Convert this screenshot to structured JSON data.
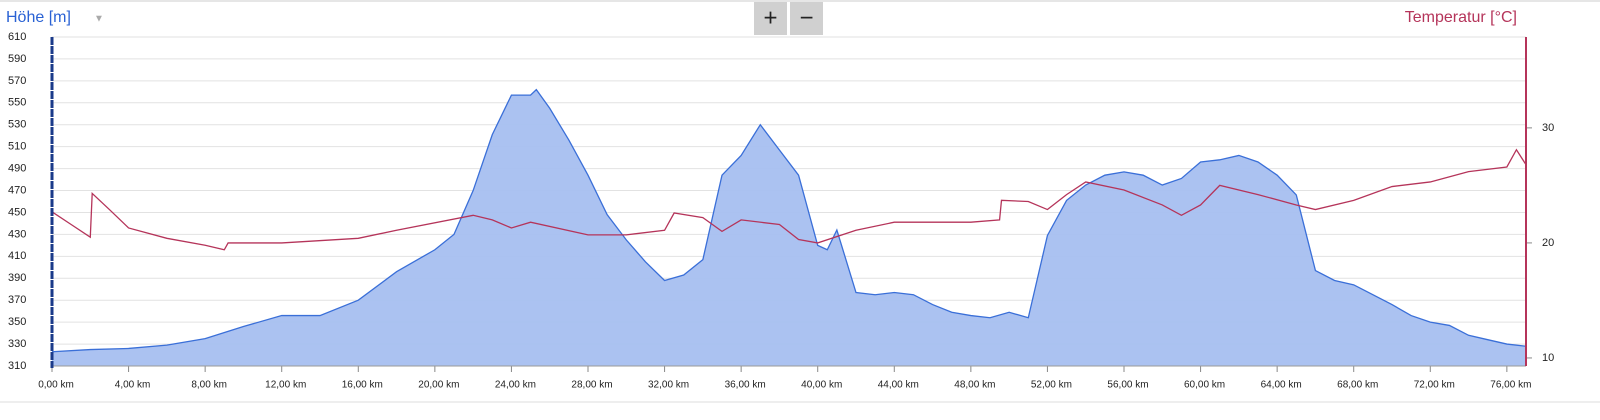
{
  "toolbar": {
    "zoom_in": "+",
    "zoom_out": "−"
  },
  "chart_data": {
    "type": "area-line",
    "y_label": "Höhe [m]",
    "y2_label": "Temperatur [°C]",
    "xlim": [
      0,
      77
    ],
    "ylim": [
      310,
      610
    ],
    "y2lim": [
      9.3,
      37.9
    ],
    "grid": true,
    "xticks": [
      {
        "value": 0,
        "label": "0,00 km"
      },
      {
        "value": 4,
        "label": "4,00 km"
      },
      {
        "value": 8,
        "label": "8,00 km"
      },
      {
        "value": 12,
        "label": "12,00 km"
      },
      {
        "value": 16,
        "label": "16,00 km"
      },
      {
        "value": 20,
        "label": "20,00 km"
      },
      {
        "value": 24,
        "label": "24,00 km"
      },
      {
        "value": 28,
        "label": "28,00 km"
      },
      {
        "value": 32,
        "label": "32,00 km"
      },
      {
        "value": 36,
        "label": "36,00 km"
      },
      {
        "value": 40,
        "label": "40,00 km"
      },
      {
        "value": 44,
        "label": "44,00 km"
      },
      {
        "value": 48,
        "label": "48,00 km"
      },
      {
        "value": 52,
        "label": "52,00 km"
      },
      {
        "value": 56,
        "label": "56,00 km"
      },
      {
        "value": 60,
        "label": "60,00 km"
      },
      {
        "value": 64,
        "label": "64,00 km"
      },
      {
        "value": 68,
        "label": "68,00 km"
      },
      {
        "value": 72,
        "label": "72,00 km"
      },
      {
        "value": 76,
        "label": "76,00 km"
      }
    ],
    "yticks": [
      310,
      330,
      350,
      370,
      390,
      410,
      430,
      450,
      470,
      490,
      510,
      530,
      550,
      570,
      590,
      610
    ],
    "y2ticks": [
      10,
      20,
      30
    ],
    "series": [
      {
        "name": "Höhe",
        "kind": "area",
        "color": "#3a6fd8",
        "fill": "#a6bff0",
        "x": [
          0,
          2,
          4,
          6,
          8,
          10,
          12,
          14,
          16,
          18,
          20,
          21,
          22,
          23,
          24,
          25,
          25.3,
          26,
          27,
          28,
          29,
          30,
          31,
          32,
          33,
          34,
          35,
          36,
          37,
          38,
          39,
          40,
          40.5,
          41,
          42,
          43,
          44,
          45,
          46,
          47,
          48,
          49,
          50,
          51,
          52,
          53,
          54,
          55,
          56,
          57,
          58,
          59,
          60,
          61,
          62,
          63,
          64,
          65,
          66,
          67,
          68,
          69,
          70,
          71,
          72,
          73,
          74,
          75,
          76,
          77
        ],
        "values": [
          323,
          325,
          326,
          329,
          335,
          346,
          356,
          356,
          370,
          396,
          416,
          430,
          470,
          521,
          557,
          557,
          562,
          545,
          516,
          484,
          448,
          425,
          405,
          388,
          393,
          407,
          484,
          502,
          530,
          507,
          484,
          420,
          416,
          434,
          377,
          375,
          377,
          375,
          366,
          359,
          356,
          354,
          359,
          354,
          429,
          461,
          475,
          484,
          487,
          484,
          475,
          481,
          496,
          498,
          502,
          496,
          484,
          466,
          397,
          388,
          384,
          375,
          366,
          356,
          350,
          347,
          338,
          334,
          330,
          328
        ]
      },
      {
        "name": "Temperatur",
        "kind": "line",
        "axis": "y2",
        "color": "#b5345a",
        "x": [
          0,
          1,
          2,
          2.1,
          3,
          4,
          6,
          8,
          9,
          9.2,
          12,
          16,
          18,
          22,
          23,
          24,
          25,
          28,
          30,
          32,
          32.5,
          34,
          35,
          36,
          38,
          39,
          40,
          42,
          44,
          48,
          49.5,
          49.6,
          51,
          52,
          53,
          54,
          56,
          58,
          59,
          60,
          61,
          63,
          65,
          66,
          68,
          70,
          72,
          74,
          76,
          76.5,
          77
        ],
        "values": [
          22.7,
          21.6,
          20.5,
          24.3,
          22.9,
          21.3,
          20.4,
          19.8,
          19.4,
          20.0,
          20.0,
          20.4,
          21.1,
          22.4,
          22.0,
          21.3,
          21.8,
          20.7,
          20.7,
          21.1,
          22.6,
          22.2,
          21.0,
          22.0,
          21.6,
          20.3,
          20.0,
          21.1,
          21.8,
          21.8,
          22.0,
          23.7,
          23.6,
          22.9,
          24.2,
          25.3,
          24.6,
          23.3,
          22.4,
          23.3,
          25.0,
          24.2,
          23.3,
          22.9,
          23.7,
          24.9,
          25.3,
          26.2,
          26.6,
          28.1,
          26.8
        ]
      }
    ]
  }
}
